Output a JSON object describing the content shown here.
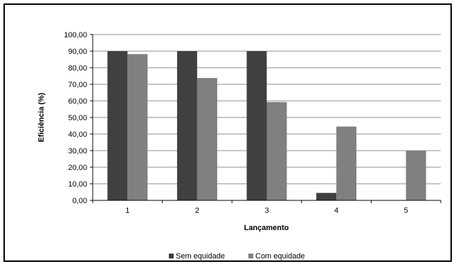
{
  "chart_data": {
    "type": "bar",
    "categories": [
      "1",
      "2",
      "3",
      "4",
      "5"
    ],
    "series": [
      {
        "name": "Sem equidade",
        "values": [
          90.0,
          90.0,
          90.0,
          4.5,
          0.0
        ],
        "color": "#404040"
      },
      {
        "name": "Com equidade",
        "values": [
          88.2,
          73.8,
          59.3,
          44.5,
          30.0
        ],
        "color": "#808080"
      }
    ],
    "xlabel": "Lançamento",
    "ylabel": "Eficiência  (%)",
    "ylim": [
      0,
      100
    ],
    "y_ticks": [
      "0,00",
      "10,00",
      "20,00",
      "30,00",
      "40,00",
      "50,00",
      "60,00",
      "70,00",
      "80,00",
      "90,00",
      "100,00"
    ],
    "grid": true,
    "legend_position": "bottom"
  }
}
